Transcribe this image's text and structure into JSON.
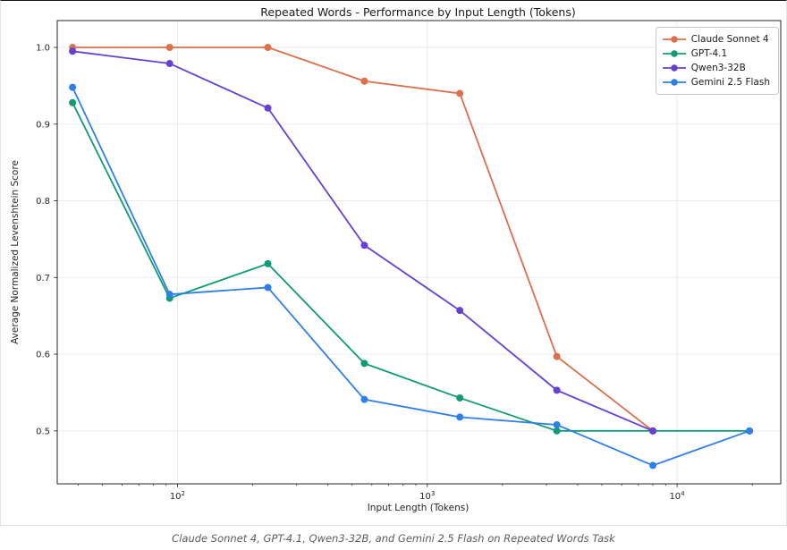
{
  "caption": "Claude Sonnet 4, GPT-4.1, Qwen3-32B, and Gemini 2.5 Flash on Repeated Words Task",
  "chart_data": {
    "type": "line",
    "title": "Repeated Words - Performance by Input Length (Tokens)",
    "xlabel": "Input Length (Tokens)",
    "ylabel": "Average Normalized Levenshtein Score",
    "x_scale": "log",
    "xlim": [
      33,
      26000
    ],
    "ylim": [
      0.431,
      1.035
    ],
    "x_ticks": [
      100,
      1000,
      10000
    ],
    "x_tick_labels": [
      "10^2",
      "10^3",
      "10^4"
    ],
    "y_ticks": [
      0.5,
      0.6,
      0.7,
      0.8,
      0.9,
      1.0
    ],
    "y_tick_labels": [
      "0.5",
      "0.6",
      "0.7",
      "0.8",
      "0.9",
      "1.0"
    ],
    "grid": true,
    "legend_position": "upper right",
    "series": [
      {
        "name": "Claude Sonnet 4",
        "color": "#DC6F4C",
        "x": [
          38,
          93,
          230,
          560,
          1350,
          3300,
          8000
        ],
        "y": [
          1.0,
          1.0,
          1.0,
          0.956,
          0.94,
          0.597,
          0.5
        ]
      },
      {
        "name": "GPT-4.1",
        "color": "#109B74",
        "x": [
          38,
          93,
          230,
          560,
          1350,
          3300,
          8000,
          19500
        ],
        "y": [
          0.928,
          0.673,
          0.718,
          0.588,
          0.543,
          0.5,
          0.5,
          0.5
        ]
      },
      {
        "name": "Qwen3-32B",
        "color": "#6640D5",
        "x": [
          38,
          93,
          230,
          560,
          1350,
          3300,
          8000
        ],
        "y": [
          0.995,
          0.979,
          0.921,
          0.742,
          0.657,
          0.553,
          0.5
        ]
      },
      {
        "name": "Gemini 2.5 Flash",
        "color": "#2E7FE8",
        "x": [
          38,
          93,
          230,
          560,
          1350,
          3300,
          8000,
          19500
        ],
        "y": [
          0.948,
          0.678,
          0.687,
          0.541,
          0.518,
          0.508,
          0.455,
          0.5
        ]
      }
    ]
  }
}
